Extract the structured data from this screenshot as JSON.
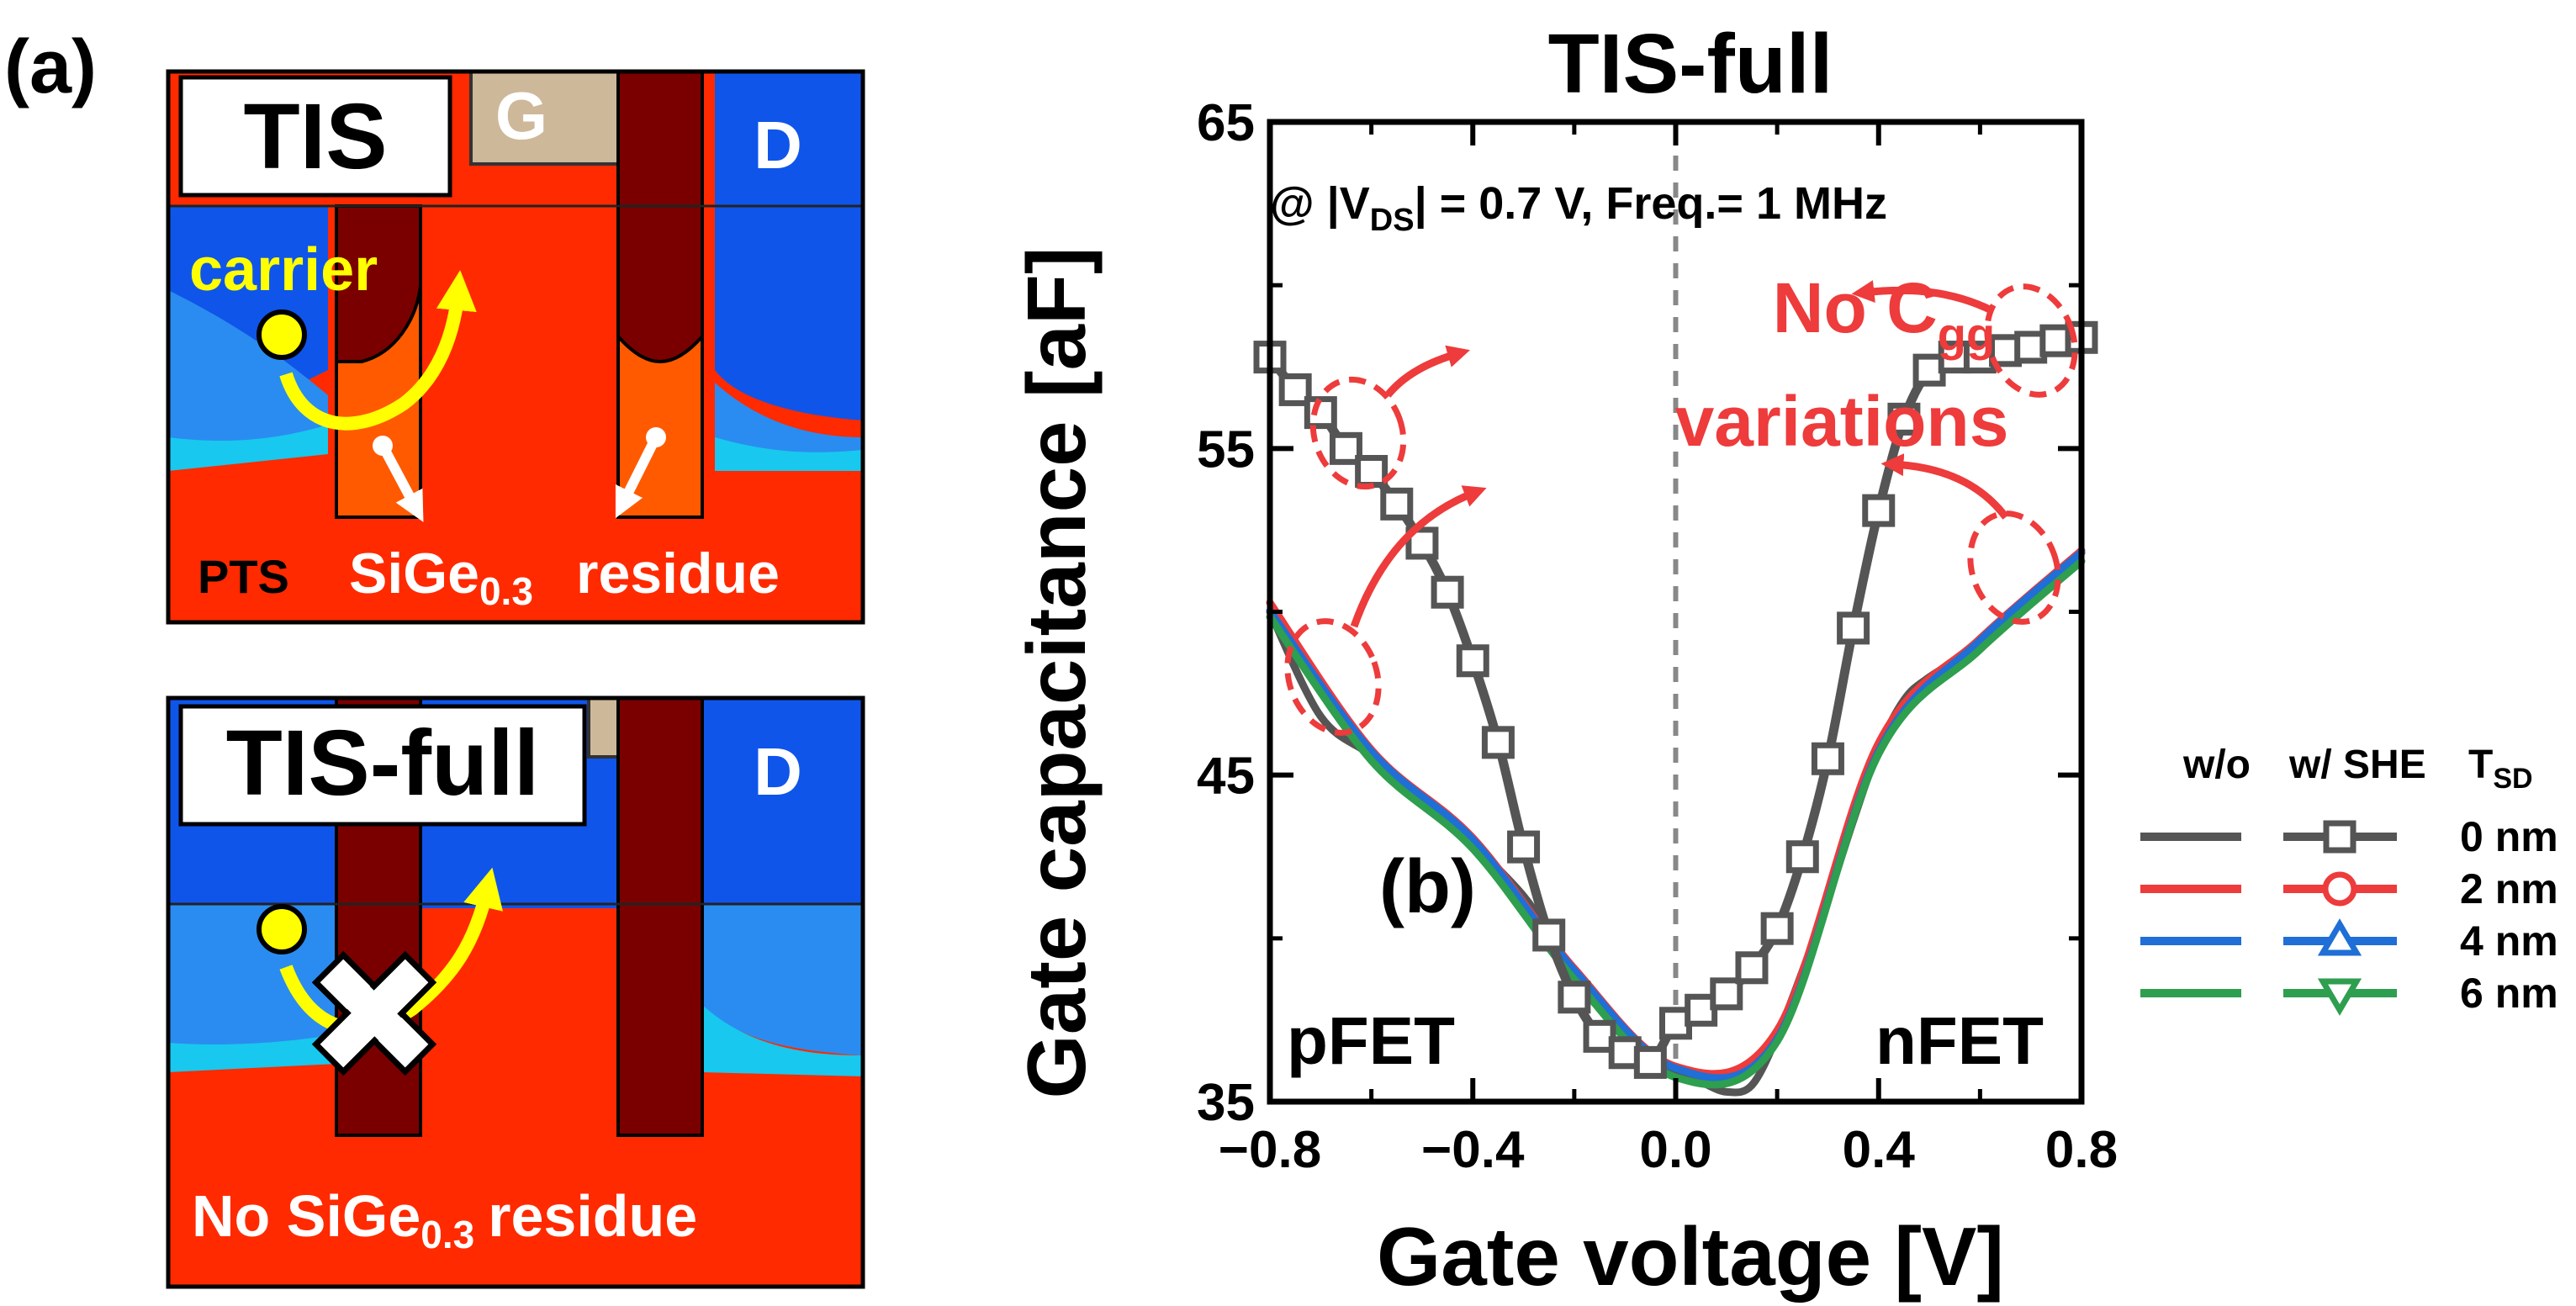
{
  "panel_a": {
    "label": "(a)",
    "top": {
      "title": "TIS",
      "gate_label": "G",
      "drain_label": "D",
      "carrier_label": "carrier",
      "pts_label": "PTS",
      "sige_base": "SiGe",
      "sige_sub": "0.3",
      "residue_label": "residue"
    },
    "bottom": {
      "title": "TIS-full",
      "drain_label": "D",
      "blocked_icon": "blocked-x-icon",
      "no_residue_prefix": "No SiGe",
      "no_residue_sub": "0.3",
      "no_residue_suffix": "residue"
    }
  },
  "panel_b": {
    "label": "(b)",
    "condition_prefix": "@ |V",
    "condition_sub": "DS",
    "condition_suffix": "| = 0.7 V, Freq.= 1 MHz",
    "annotation_line1": "No C",
    "annotation_sub": "gg",
    "annotation_line2": "variations",
    "pfet_label": "pFET",
    "nfet_label": "nFET"
  },
  "legend": {
    "col_without": "w/o",
    "col_with": "w/ SHE",
    "col_tsd_base": "T",
    "col_tsd_sub": "SD",
    "entries": [
      {
        "label": "0 nm",
        "color": "#555555",
        "marker": "square"
      },
      {
        "label": "2 nm",
        "color": "#ee3b3b",
        "marker": "circle"
      },
      {
        "label": "4 nm",
        "color": "#1f6fd6",
        "marker": "triangle-up"
      },
      {
        "label": "6 nm",
        "color": "#2e9e4f",
        "marker": "triangle-down"
      }
    ]
  },
  "colors": {
    "si_red": "#ff2a00",
    "oxide_blue": "#0f55ea",
    "gate_tan": "#cdb89a",
    "metal_maroon": "#7a0000",
    "residue_orange": "#ff5a00",
    "carrier_yellow": "#ffff00",
    "annotation_red": "#ee3b3b"
  },
  "chart_data": {
    "type": "line",
    "title": "TIS-full",
    "xlabel": "Gate voltage [V]",
    "ylabel": "Gate capacitance [aF]",
    "xlim": [
      -0.8,
      0.8
    ],
    "ylim": [
      35,
      65
    ],
    "xticks": [
      -0.8,
      -0.4,
      0.0,
      0.4,
      0.8
    ],
    "xtick_labels": [
      "−0.8",
      "−0.4",
      "0.0",
      "0.4",
      "0.8"
    ],
    "yticks": [
      35,
      45,
      55,
      65
    ],
    "ytick_labels": [
      "35",
      "45",
      "55",
      "65"
    ],
    "zero_line_x": 0.0,
    "series": [
      {
        "name": "w/ SHE, T_SD = 0 nm",
        "color": "#555555",
        "x": [
          -0.8,
          -0.75,
          -0.7,
          -0.65,
          -0.6,
          -0.55,
          -0.5,
          -0.45,
          -0.4,
          -0.35,
          -0.3,
          -0.25,
          -0.2,
          -0.15,
          -0.1,
          -0.05,
          0.0,
          0.05,
          0.1,
          0.15,
          0.2,
          0.25,
          0.3,
          0.35,
          0.4,
          0.45,
          0.5,
          0.55,
          0.6,
          0.65,
          0.7,
          0.75,
          0.8
        ],
        "y": [
          57.8,
          56.8,
          56.1,
          55.0,
          54.3,
          53.3,
          52.1,
          50.6,
          48.5,
          46.0,
          42.8,
          40.1,
          38.2,
          37.0,
          36.5,
          36.2,
          37.4,
          37.8,
          38.3,
          39.1,
          40.3,
          42.5,
          45.5,
          49.5,
          53.1,
          55.9,
          57.4,
          57.8,
          57.8,
          58.0,
          58.1,
          58.3,
          58.4
        ]
      },
      {
        "name": "w/o SHE, T_SD = 0 nm",
        "color": "#555555",
        "x": [
          -0.8,
          -0.7,
          -0.6,
          -0.5,
          -0.4,
          -0.3,
          -0.25,
          -0.2,
          -0.15,
          -0.1,
          -0.05,
          0.0,
          0.05,
          0.1,
          0.15,
          0.2,
          0.25,
          0.3,
          0.35,
          0.4,
          0.45,
          0.5,
          0.6,
          0.7,
          0.8
        ],
        "y": [
          50.0,
          46.8,
          45.6,
          44.3,
          42.9,
          41.3,
          40.1,
          38.9,
          37.9,
          37.0,
          36.4,
          35.9,
          35.6,
          35.3,
          35.5,
          37.0,
          39.0,
          41.2,
          43.6,
          45.8,
          47.3,
          48.0,
          49.0,
          50.5,
          51.8
        ]
      },
      {
        "name": "w/o SHE, T_SD = 2 nm",
        "color": "#ee3b3b",
        "x": [
          -0.8,
          -0.6,
          -0.4,
          -0.2,
          0.0,
          0.2,
          0.4,
          0.6,
          0.8
        ],
        "y": [
          50.2,
          45.7,
          43.0,
          39.0,
          36.0,
          37.1,
          45.9,
          49.1,
          51.8
        ]
      },
      {
        "name": "w/o SHE, T_SD = 4 nm",
        "color": "#1f6fd6",
        "x": [
          -0.8,
          -0.6,
          -0.4,
          -0.2,
          0.0,
          0.2,
          0.4,
          0.6,
          0.8
        ],
        "y": [
          50.1,
          45.8,
          43.1,
          39.1,
          36.1,
          37.0,
          45.8,
          49.2,
          51.9
        ]
      },
      {
        "name": "w/o SHE, T_SD = 6 nm",
        "color": "#2e9e4f",
        "x": [
          -0.8,
          -0.6,
          -0.4,
          -0.2,
          0.0,
          0.2,
          0.4,
          0.6,
          0.8
        ],
        "y": [
          50.0,
          45.6,
          42.9,
          38.9,
          35.9,
          37.0,
          45.8,
          49.0,
          51.7
        ]
      }
    ]
  }
}
